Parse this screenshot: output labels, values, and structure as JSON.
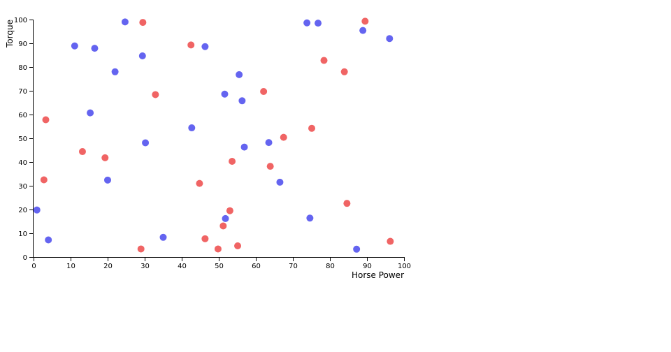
{
  "chart_data": {
    "type": "scatter",
    "xlabel": "Horse Power",
    "ylabel": "Torque",
    "xlim": [
      0,
      100
    ],
    "ylim": [
      0,
      100
    ],
    "x_ticks": [
      "0",
      "10",
      "20",
      "30",
      "40",
      "50",
      "60",
      "70",
      "80",
      "90",
      "100"
    ],
    "y_ticks": [
      "0",
      "10",
      "20",
      "30",
      "40",
      "50",
      "60",
      "70",
      "80",
      "90",
      "100"
    ],
    "grid": false,
    "legend": "none",
    "series": [
      {
        "color": "#6464f0",
        "points": [
          {
            "x": 0.9,
            "y": 19.8
          },
          {
            "x": 4.0,
            "y": 7.2
          },
          {
            "x": 11.1,
            "y": 88.9
          },
          {
            "x": 15.3,
            "y": 60.7
          },
          {
            "x": 16.5,
            "y": 87.9
          },
          {
            "x": 20.0,
            "y": 32.4
          },
          {
            "x": 22.0,
            "y": 78.0
          },
          {
            "x": 24.7,
            "y": 99.0
          },
          {
            "x": 29.4,
            "y": 84.7
          },
          {
            "x": 30.2,
            "y": 48.1
          },
          {
            "x": 35.0,
            "y": 8.3
          },
          {
            "x": 42.7,
            "y": 54.4
          },
          {
            "x": 46.3,
            "y": 88.6
          },
          {
            "x": 51.6,
            "y": 68.6
          },
          {
            "x": 51.8,
            "y": 16.2
          },
          {
            "x": 55.5,
            "y": 76.8
          },
          {
            "x": 56.3,
            "y": 65.8
          },
          {
            "x": 56.9,
            "y": 46.3
          },
          {
            "x": 63.5,
            "y": 48.2
          },
          {
            "x": 66.5,
            "y": 31.5
          },
          {
            "x": 73.8,
            "y": 98.6
          },
          {
            "x": 74.6,
            "y": 16.4
          },
          {
            "x": 76.8,
            "y": 98.5
          },
          {
            "x": 87.2,
            "y": 3.3
          },
          {
            "x": 88.9,
            "y": 95.4
          },
          {
            "x": 96.1,
            "y": 92.0
          }
        ]
      },
      {
        "color": "#f06464",
        "points": [
          {
            "x": 2.8,
            "y": 32.5
          },
          {
            "x": 3.3,
            "y": 57.8
          },
          {
            "x": 13.2,
            "y": 44.4
          },
          {
            "x": 19.3,
            "y": 41.8
          },
          {
            "x": 29.0,
            "y": 3.4
          },
          {
            "x": 29.5,
            "y": 98.8
          },
          {
            "x": 32.9,
            "y": 68.4
          },
          {
            "x": 42.5,
            "y": 89.3
          },
          {
            "x": 44.8,
            "y": 31.0
          },
          {
            "x": 46.3,
            "y": 7.7
          },
          {
            "x": 49.8,
            "y": 3.4
          },
          {
            "x": 51.2,
            "y": 13.1
          },
          {
            "x": 53.0,
            "y": 19.5
          },
          {
            "x": 53.6,
            "y": 40.3
          },
          {
            "x": 55.1,
            "y": 4.7
          },
          {
            "x": 62.1,
            "y": 69.7
          },
          {
            "x": 63.9,
            "y": 38.2
          },
          {
            "x": 67.5,
            "y": 50.4
          },
          {
            "x": 75.1,
            "y": 54.2
          },
          {
            "x": 78.4,
            "y": 82.8
          },
          {
            "x": 83.9,
            "y": 78.0
          },
          {
            "x": 84.6,
            "y": 22.6
          },
          {
            "x": 89.5,
            "y": 99.3
          },
          {
            "x": 96.3,
            "y": 6.6
          }
        ]
      }
    ]
  }
}
